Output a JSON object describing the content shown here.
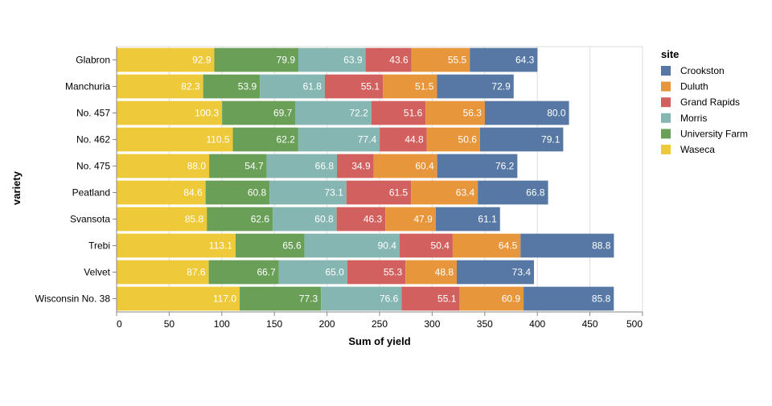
{
  "chart_data": {
    "type": "bar",
    "orientation": "horizontal",
    "stacked": true,
    "xlabel": "Sum of yield",
    "ylabel": "variety",
    "xlim": [
      0,
      500
    ],
    "x_ticks": [
      0,
      50,
      100,
      150,
      200,
      250,
      300,
      350,
      400,
      450,
      500
    ],
    "grid": true,
    "legend_title": "site",
    "legend_position": "right",
    "categories": [
      "Glabron",
      "Manchuria",
      "No. 457",
      "No. 462",
      "No. 475",
      "Peatland",
      "Svansota",
      "Trebi",
      "Velvet",
      "Wisconsin No. 38"
    ],
    "series": [
      {
        "name": "Waseca",
        "color": "#eeca3b",
        "values": [
          92.9,
          82.3,
          100.3,
          110.5,
          88.0,
          84.6,
          85.8,
          113.1,
          87.6,
          117.0
        ]
      },
      {
        "name": "University Farm",
        "color": "#6a9f58",
        "values": [
          79.9,
          53.9,
          69.7,
          62.2,
          54.7,
          60.8,
          62.6,
          65.6,
          66.7,
          77.3
        ]
      },
      {
        "name": "Morris",
        "color": "#85b6b2",
        "values": [
          63.9,
          61.8,
          72.2,
          77.4,
          66.8,
          73.1,
          60.8,
          90.4,
          65.0,
          76.6
        ]
      },
      {
        "name": "Grand Rapids",
        "color": "#d1605e",
        "values": [
          43.6,
          55.1,
          51.6,
          44.8,
          34.9,
          61.5,
          46.3,
          50.4,
          55.3,
          55.1
        ]
      },
      {
        "name": "Duluth",
        "color": "#e7963c",
        "values": [
          55.5,
          51.5,
          56.3,
          50.6,
          60.4,
          63.4,
          47.9,
          64.5,
          48.8,
          60.9
        ]
      },
      {
        "name": "Crookston",
        "color": "#5778a4",
        "values": [
          64.3,
          72.9,
          80.0,
          79.1,
          76.2,
          66.8,
          61.1,
          88.8,
          73.4,
          85.8
        ]
      }
    ],
    "legend_order": [
      "Crookston",
      "Duluth",
      "Grand Rapids",
      "Morris",
      "University Farm",
      "Waseca"
    ]
  }
}
